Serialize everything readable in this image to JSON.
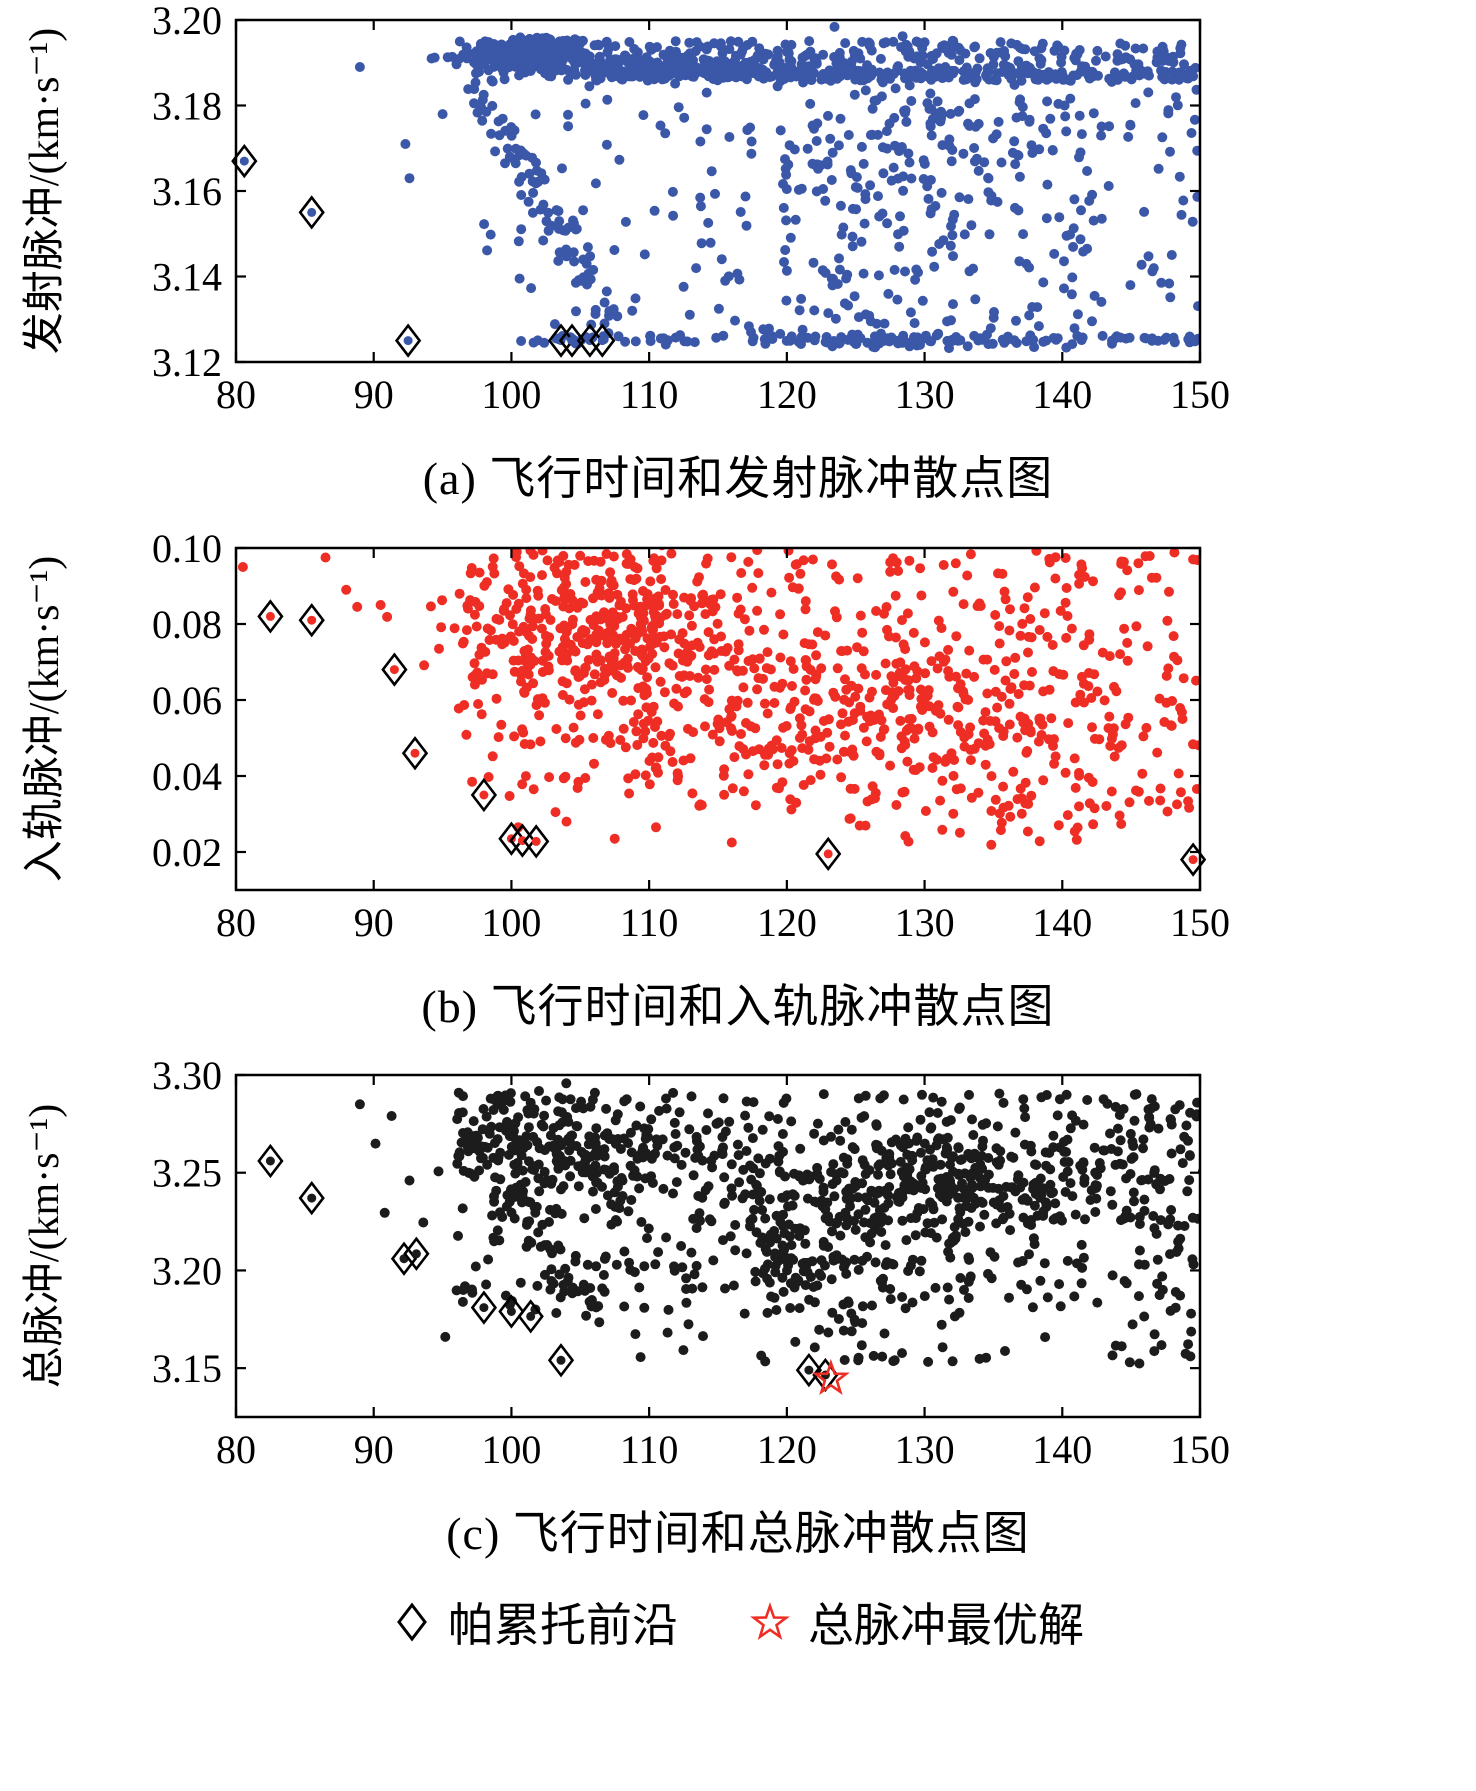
{
  "chart_data": [
    {
      "id": "a",
      "type": "scatter",
      "caption": "(a) 飞行时间和发射脉冲散点图",
      "xlabel": "",
      "ylabel": "发射脉冲/(km·s⁻¹)",
      "xlim": [
        80,
        150
      ],
      "ylim": [
        3.12,
        3.2
      ],
      "xticks": [
        80,
        90,
        100,
        110,
        120,
        130,
        140,
        150
      ],
      "xtick_labels": [
        "80",
        "90",
        "100",
        "110",
        "120",
        "130",
        "140",
        "150"
      ],
      "yticks": [
        3.12,
        3.14,
        3.16,
        3.18,
        3.2
      ],
      "ytick_labels": [
        "3.12",
        "3.14",
        "3.16",
        "3.18",
        "3.20"
      ],
      "grid": false,
      "point_color": "#3b57a8",
      "pareto_dot_color": "#3b57a8",
      "seed": 101,
      "clusters": [
        {
          "t": "u",
          "x0": 96,
          "x1": 150,
          "y0": 3.1868,
          "y1": 3.1952,
          "n": 360
        },
        {
          "t": "g",
          "cx": 101.5,
          "cy": 3.1925,
          "sx": 2.3,
          "sy": 0.002,
          "n": 240
        },
        {
          "t": "g",
          "cx": 114,
          "cy": 3.1885,
          "sx": 5.5,
          "sy": 0.0015,
          "n": 150
        },
        {
          "t": "u",
          "x0": 106,
          "x1": 150,
          "y0": 3.1858,
          "y1": 3.1882,
          "n": 200
        },
        {
          "t": "l",
          "x0": 97.5,
          "y0": 3.184,
          "x1": 107.5,
          "y1": 3.127,
          "jx": 1.1,
          "jy": 0.0045,
          "n": 85
        },
        {
          "t": "u",
          "x0": 98,
          "x1": 113,
          "y0": 3.128,
          "y1": 3.183,
          "n": 45
        },
        {
          "t": "u",
          "x0": 113,
          "x1": 150,
          "y0": 3.127,
          "y1": 3.1845,
          "n": 190
        },
        {
          "t": "g",
          "cx": 127,
          "cy": 3.158,
          "sx": 4.5,
          "sy": 0.016,
          "n": 130
        },
        {
          "t": "g",
          "cx": 133,
          "cy": 3.178,
          "sx": 6,
          "sy": 0.006,
          "n": 60
        },
        {
          "t": "u",
          "x0": 98,
          "x1": 150,
          "y0": 3.1242,
          "y1": 3.1262,
          "n": 80
        },
        {
          "t": "g",
          "cx": 129,
          "cy": 3.1252,
          "sx": 8,
          "sy": 0.0007,
          "n": 90
        }
      ],
      "extra_points": [
        [
          89,
          3.189
        ],
        [
          92.3,
          3.171
        ],
        [
          92.6,
          3.163
        ],
        [
          94.2,
          3.191
        ],
        [
          95,
          3.178
        ]
      ],
      "pareto_front": [
        [
          80.6,
          3.167
        ],
        [
          85.5,
          3.155
        ],
        [
          92.5,
          3.125
        ],
        [
          103.6,
          3.125
        ],
        [
          104.4,
          3.125
        ],
        [
          105.7,
          3.125
        ],
        [
          106.6,
          3.125
        ]
      ]
    },
    {
      "id": "b",
      "type": "scatter",
      "caption": "(b) 飞行时间和入轨脉冲散点图",
      "xlabel": "",
      "ylabel": "入轨脉冲/(km·s⁻¹)",
      "xlim": [
        80,
        150
      ],
      "ylim": [
        0.01,
        0.1
      ],
      "xticks": [
        80,
        90,
        100,
        110,
        120,
        130,
        140,
        150
      ],
      "xtick_labels": [
        "80",
        "90",
        "100",
        "110",
        "120",
        "130",
        "140",
        "150"
      ],
      "yticks": [
        0.02,
        0.04,
        0.06,
        0.08,
        0.1
      ],
      "ytick_labels": [
        "0.02",
        "0.04",
        "0.06",
        "0.08",
        "0.10"
      ],
      "grid": false,
      "point_color": "#ee2e24",
      "pareto_dot_color": "#ee2e24",
      "seed": 202,
      "clusters": [
        {
          "t": "g",
          "cx": 106,
          "cy": 0.079,
          "sx": 5.5,
          "sy": 0.009,
          "n": 300
        },
        {
          "t": "u",
          "x0": 96,
          "x1": 150,
          "y0": 0.048,
          "y1": 0.097,
          "n": 360
        },
        {
          "t": "g",
          "cx": 127,
          "cy": 0.058,
          "sx": 9,
          "sy": 0.012,
          "n": 240
        },
        {
          "t": "u",
          "x0": 110,
          "x1": 150,
          "y0": 0.03,
          "y1": 0.055,
          "n": 120
        },
        {
          "t": "u",
          "x0": 124,
          "x1": 148,
          "y0": 0.021,
          "y1": 0.038,
          "n": 35
        },
        {
          "t": "u",
          "x0": 97,
          "x1": 110,
          "y0": 0.033,
          "y1": 0.05,
          "n": 22
        },
        {
          "t": "u",
          "x0": 100,
          "x1": 150,
          "y0": 0.095,
          "y1": 0.0995,
          "n": 40
        }
      ],
      "extra_points": [
        [
          80.5,
          0.095
        ],
        [
          86.5,
          0.0975
        ],
        [
          88,
          0.089
        ],
        [
          88.8,
          0.0845
        ],
        [
          90.5,
          0.085
        ],
        [
          104,
          0.028
        ],
        [
          107.5,
          0.0235
        ],
        [
          110.5,
          0.0265
        ],
        [
          116,
          0.0225
        ],
        [
          103.2,
          0.0305
        ],
        [
          100.5,
          0.0265
        ],
        [
          149.5,
          0.097
        ]
      ],
      "pareto_front": [
        [
          82.5,
          0.082
        ],
        [
          85.5,
          0.081
        ],
        [
          91.5,
          0.068
        ],
        [
          93,
          0.046
        ],
        [
          98,
          0.035
        ],
        [
          100,
          0.0235
        ],
        [
          100.8,
          0.023
        ],
        [
          101.8,
          0.0228
        ],
        [
          123,
          0.0195
        ],
        [
          149.5,
          0.018
        ]
      ]
    },
    {
      "id": "c",
      "type": "scatter",
      "caption": "(c) 飞行时间和总脉冲散点图",
      "xlabel": "",
      "ylabel": "总脉冲/(km·s⁻¹)",
      "xlim": [
        80,
        150
      ],
      "ylim": [
        3.125,
        3.3
      ],
      "xticks": [
        80,
        90,
        100,
        110,
        120,
        130,
        140,
        150
      ],
      "xtick_labels": [
        "80",
        "90",
        "100",
        "110",
        "120",
        "130",
        "140",
        "150"
      ],
      "yticks": [
        3.15,
        3.2,
        3.25,
        3.3
      ],
      "ytick_labels": [
        "3.15",
        "3.20",
        "3.25",
        "3.30"
      ],
      "grid": false,
      "point_color": "#1c1c1c",
      "pareto_dot_color": "#1c1c1c",
      "seed": 303,
      "clusters": [
        {
          "t": "u",
          "x0": 96,
          "x1": 150,
          "y0": 3.225,
          "y1": 3.291,
          "n": 430
        },
        {
          "t": "g",
          "cx": 131,
          "cy": 3.244,
          "sx": 7,
          "sy": 0.011,
          "n": 250
        },
        {
          "t": "g",
          "cx": 104,
          "cy": 3.263,
          "sx": 4.5,
          "sy": 0.013,
          "n": 170
        },
        {
          "t": "u",
          "x0": 96,
          "x1": 150,
          "y0": 3.178,
          "y1": 3.228,
          "n": 200
        },
        {
          "t": "l",
          "x0": 98,
          "y0": 3.262,
          "x1": 106,
          "y1": 3.172,
          "jx": 1.2,
          "jy": 0.009,
          "n": 55
        },
        {
          "t": "l",
          "x0": 117,
          "y0": 3.225,
          "x1": 127.5,
          "y1": 3.152,
          "jx": 1.6,
          "jy": 0.007,
          "n": 45
        },
        {
          "t": "u",
          "x0": 108,
          "x1": 150,
          "y0": 3.152,
          "y1": 3.178,
          "n": 40
        },
        {
          "t": "g",
          "cx": 122,
          "cy": 3.205,
          "sx": 5,
          "sy": 0.012,
          "n": 80
        }
      ],
      "extra_points": [
        [
          89,
          3.285
        ],
        [
          91.3,
          3.279
        ],
        [
          92.6,
          3.246
        ],
        [
          93.6,
          3.2245
        ],
        [
          90.8,
          3.2295
        ],
        [
          149.3,
          3.156
        ],
        [
          95.2,
          3.166
        ],
        [
          96.5,
          3.19
        ]
      ],
      "pareto_front": [
        [
          82.5,
          3.256
        ],
        [
          85.5,
          3.237
        ],
        [
          92.2,
          3.206
        ],
        [
          93.1,
          3.2085
        ],
        [
          98,
          3.181
        ],
        [
          100,
          3.179
        ],
        [
          101.4,
          3.1765
        ],
        [
          103.6,
          3.154
        ],
        [
          121.6,
          3.149
        ],
        [
          122.8,
          3.1465
        ]
      ],
      "optimal": [
        [
          123.2,
          3.1445
        ]
      ],
      "optimal_color": "#ee2e24"
    }
  ],
  "legend": {
    "items": [
      {
        "label": "帕累托前沿",
        "marker": "diamond",
        "color": "#000000"
      },
      {
        "label": "总脉冲最优解",
        "marker": "star",
        "color": "#ee2e24"
      }
    ]
  }
}
